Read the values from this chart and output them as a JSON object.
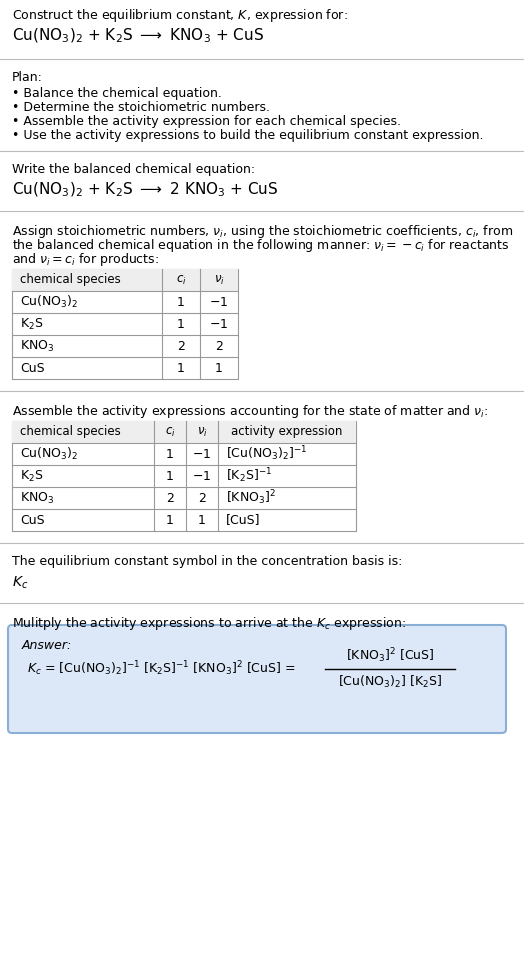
{
  "title_line1": "Construct the equilibrium constant, $K$, expression for:",
  "title_line2": "Cu(NO$_3$)$_2$ + K$_2$S $\\longrightarrow$ KNO$_3$ + CuS",
  "plan_header": "Plan:",
  "plan_items": [
    "• Balance the chemical equation.",
    "• Determine the stoichiometric numbers.",
    "• Assemble the activity expression for each chemical species.",
    "• Use the activity expressions to build the equilibrium constant expression."
  ],
  "balanced_header": "Write the balanced chemical equation:",
  "balanced_eq": "Cu(NO$_3$)$_2$ + K$_2$S $\\longrightarrow$ 2 KNO$_3$ + CuS",
  "stoich_intro_lines": [
    "Assign stoichiometric numbers, $\\nu_i$, using the stoichiometric coefficients, $c_i$, from",
    "the balanced chemical equation in the following manner: $\\nu_i = -c_i$ for reactants",
    "and $\\nu_i = c_i$ for products:"
  ],
  "table1_headers": [
    "chemical species",
    "$c_i$",
    "$\\nu_i$"
  ],
  "table1_data": [
    [
      "Cu(NO$_3$)$_2$",
      "1",
      "$-1$"
    ],
    [
      "K$_2$S",
      "1",
      "$-1$"
    ],
    [
      "KNO$_3$",
      "2",
      "2"
    ],
    [
      "CuS",
      "1",
      "1"
    ]
  ],
  "activity_intro": "Assemble the activity expressions accounting for the state of matter and $\\nu_i$:",
  "table2_headers": [
    "chemical species",
    "$c_i$",
    "$\\nu_i$",
    "activity expression"
  ],
  "table2_data": [
    [
      "Cu(NO$_3$)$_2$",
      "1",
      "$-1$",
      "[Cu(NO$_3$)$_2$]$^{-1}$"
    ],
    [
      "K$_2$S",
      "1",
      "$-1$",
      "[K$_2$S]$^{-1}$"
    ],
    [
      "KNO$_3$",
      "2",
      "2",
      "[KNO$_3$]$^2$"
    ],
    [
      "CuS",
      "1",
      "1",
      "[CuS]"
    ]
  ],
  "kc_intro": "The equilibrium constant symbol in the concentration basis is:",
  "kc_symbol": "$K_c$",
  "multiply_intro": "Mulitply the activity expressions to arrive at the $K_c$ expression:",
  "answer_label": "Answer:",
  "kc_eq_line": "$K_c$ = [Cu(NO$_3$)$_2$]$^{-1}$ [K$_2$S]$^{-1}$ [KNO$_3$]$^2$ [CuS] =",
  "fraction_num": "[KNO$_3$]$^2$ [CuS]",
  "fraction_den": "[Cu(NO$_3$)$_2$] [K$_2$S]",
  "bg_color": "#ffffff",
  "text_color": "#000000",
  "answer_bg": "#dce8f8",
  "answer_border": "#8bafd4",
  "separator_color": "#bbbbbb",
  "font_size": 9.0
}
